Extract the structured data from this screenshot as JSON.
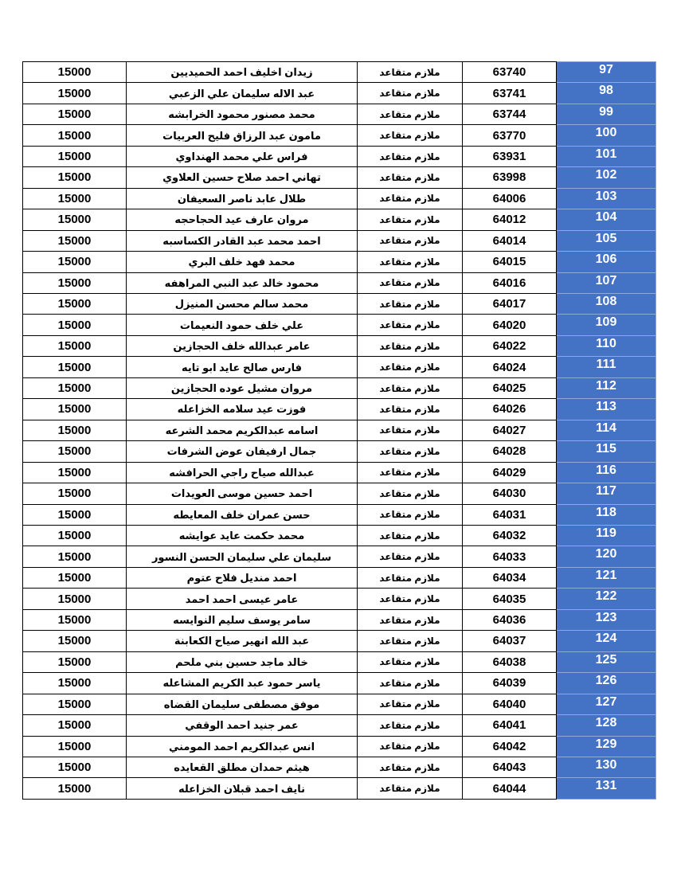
{
  "accent_color": "#4472c4",
  "rows": [
    {
      "index": "97",
      "number": "63740",
      "rank": "ملازم متقاعد",
      "name": "زيدان اخليف احمد الحميديين",
      "amount": "15000"
    },
    {
      "index": "98",
      "number": "63741",
      "rank": "ملازم متقاعد",
      "name": "عبد الاله سليمان علي الزعبي",
      "amount": "15000"
    },
    {
      "index": "99",
      "number": "63744",
      "rank": "ملازم متقاعد",
      "name": "محمد مصنور محمود الخرابشه",
      "amount": "15000"
    },
    {
      "index": "100",
      "number": "63770",
      "rank": "ملازم متقاعد",
      "name": "مامون عبد الرزاق فليح العربيات",
      "amount": "15000"
    },
    {
      "index": "101",
      "number": "63931",
      "rank": "ملازم متقاعد",
      "name": "فراس علي محمد الهنداوي",
      "amount": "15000"
    },
    {
      "index": "102",
      "number": "63998",
      "rank": "ملازم متقاعد",
      "name": "تهاني احمد صلاح حسين العلاوي",
      "amount": "15000"
    },
    {
      "index": "103",
      "number": "64006",
      "rank": "ملازم متقاعد",
      "name": "طلال عابد ناصر السعيفان",
      "amount": "15000"
    },
    {
      "index": "104",
      "number": "64012",
      "rank": "ملازم متقاعد",
      "name": "مروان عارف عيد الحجاحجه",
      "amount": "15000"
    },
    {
      "index": "105",
      "number": "64014",
      "rank": "ملازم متقاعد",
      "name": "احمد محمد عبد القادر الكساسبه",
      "amount": "15000"
    },
    {
      "index": "106",
      "number": "64015",
      "rank": "ملازم متقاعد",
      "name": "محمد فهد خلف البري",
      "amount": "15000"
    },
    {
      "index": "107",
      "number": "64016",
      "rank": "ملازم متقاعد",
      "name": "محمود خالد عبد النبي المراهفه",
      "amount": "15000"
    },
    {
      "index": "108",
      "number": "64017",
      "rank": "ملازم متقاعد",
      "name": "محمد سالم محسن المنيزل",
      "amount": "15000"
    },
    {
      "index": "109",
      "number": "64020",
      "rank": "ملازم متقاعد",
      "name": "علي خلف حمود النعيمات",
      "amount": "15000"
    },
    {
      "index": "110",
      "number": "64022",
      "rank": "ملازم متقاعد",
      "name": "عامر عبدالله خلف الحجازين",
      "amount": "15000"
    },
    {
      "index": "111",
      "number": "64024",
      "rank": "ملازم متقاعد",
      "name": "فارس صالح عايد ابو تايه",
      "amount": "15000"
    },
    {
      "index": "112",
      "number": "64025",
      "rank": "ملازم متقاعد",
      "name": "مروان مشيل عوده الحجازين",
      "amount": "15000"
    },
    {
      "index": "113",
      "number": "64026",
      "rank": "ملازم متقاعد",
      "name": "فوزت عيد سلامه الخزاعله",
      "amount": "15000"
    },
    {
      "index": "114",
      "number": "64027",
      "rank": "ملازم متقاعد",
      "name": "اسامه عبدالكريم محمد الشرعه",
      "amount": "15000"
    },
    {
      "index": "115",
      "number": "64028",
      "rank": "ملازم متقاعد",
      "name": "جمال ارفيفان عوض الشرفات",
      "amount": "15000"
    },
    {
      "index": "116",
      "number": "64029",
      "rank": "ملازم متقاعد",
      "name": "عبدالله صياح راجي الحرافشه",
      "amount": "15000"
    },
    {
      "index": "117",
      "number": "64030",
      "rank": "ملازم متقاعد",
      "name": "احمد حسين موسى العويدات",
      "amount": "15000"
    },
    {
      "index": "118",
      "number": "64031",
      "rank": "ملازم متقاعد",
      "name": "حسن عمران خلف المعايطه",
      "amount": "15000"
    },
    {
      "index": "119",
      "number": "64032",
      "rank": "ملازم متقاعد",
      "name": "محمد حكمت عايد عوايشه",
      "amount": "15000"
    },
    {
      "index": "120",
      "number": "64033",
      "rank": "ملازم متقاعد",
      "name": "سليمان علي سليمان الحسن النسور",
      "amount": "15000"
    },
    {
      "index": "121",
      "number": "64034",
      "rank": "ملازم متقاعد",
      "name": "احمد منديل فلاح عتوم",
      "amount": "15000"
    },
    {
      "index": "122",
      "number": "64035",
      "rank": "ملازم متقاعد",
      "name": "عامر عيسى احمد احمد",
      "amount": "15000"
    },
    {
      "index": "123",
      "number": "64036",
      "rank": "ملازم متقاعد",
      "name": "سامر يوسف سليم النوايسه",
      "amount": "15000"
    },
    {
      "index": "124",
      "number": "64037",
      "rank": "ملازم متقاعد",
      "name": "عبد الله انهير صياح الكعابنة",
      "amount": "15000"
    },
    {
      "index": "125",
      "number": "64038",
      "rank": "ملازم متقاعد",
      "name": "خالد ماجد حسين بني ملحم",
      "amount": "15000"
    },
    {
      "index": "126",
      "number": "64039",
      "rank": "ملازم متقاعد",
      "name": "ياسر حمود عبد الكريم المشاعله",
      "amount": "15000"
    },
    {
      "index": "127",
      "number": "64040",
      "rank": "ملازم متقاعد",
      "name": "موفق مصطفى سليمان القضاه",
      "amount": "15000"
    },
    {
      "index": "128",
      "number": "64041",
      "rank": "ملازم متقاعد",
      "name": "عمر جنيد احمد الوقفي",
      "amount": "15000"
    },
    {
      "index": "129",
      "number": "64042",
      "rank": "ملازم متقاعد",
      "name": "انس عبدالكريم احمد المومني",
      "amount": "15000"
    },
    {
      "index": "130",
      "number": "64043",
      "rank": "ملازم متقاعد",
      "name": "هيثم حمدان مطلق القعايده",
      "amount": "15000"
    },
    {
      "index": "131",
      "number": "64044",
      "rank": "ملازم متقاعد",
      "name": "نايف احمد قبلان الخزاعله",
      "amount": "15000"
    }
  ]
}
